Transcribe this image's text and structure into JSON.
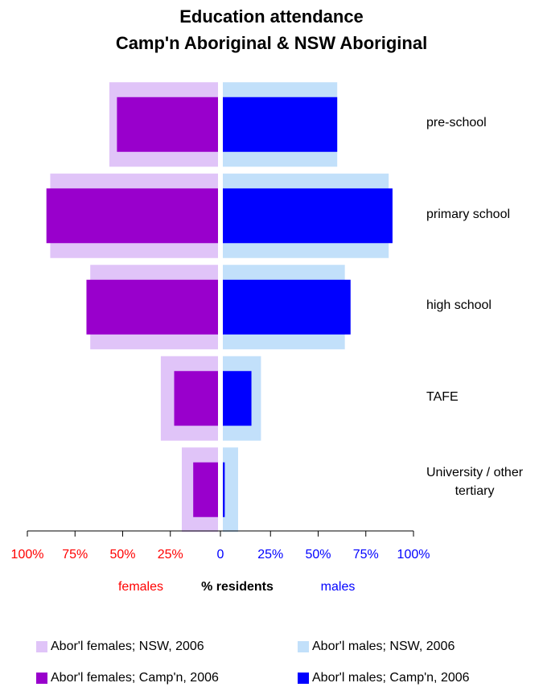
{
  "chart_data": {
    "type": "bar",
    "orientation": "horizontal-butterfly",
    "title_lines": [
      "Education attendance",
      "Camp'n Aboriginal & NSW Aboriginal"
    ],
    "categories": [
      "pre-school",
      "primary school",
      "high school",
      "TAFE",
      "University / other tertiary"
    ],
    "category_label_lines": [
      [
        "pre-school"
      ],
      [
        "primary school"
      ],
      [
        "high school"
      ],
      [
        "TAFE"
      ],
      [
        "University / other",
        "tertiary"
      ]
    ],
    "series": [
      {
        "name": "Abor'l females; NSW, 2006",
        "side": "left",
        "values": [
          57,
          88,
          67,
          30,
          19
        ]
      },
      {
        "name": "Abor'l males; NSW, 2006",
        "side": "right",
        "values": [
          60,
          87,
          64,
          20,
          8
        ]
      },
      {
        "name": "Abor'l females; Camp'n, 2006",
        "side": "left",
        "values": [
          53,
          90,
          69,
          23,
          13
        ]
      },
      {
        "name": "Abor'l males; Camp'n, 2006",
        "side": "right",
        "values": [
          60,
          89,
          67,
          15,
          1
        ]
      }
    ],
    "left_tick_labels": [
      "100%",
      "75%",
      "50%",
      "25%"
    ],
    "center_tick_label": "0",
    "right_tick_labels": [
      "25%",
      "50%",
      "75%",
      "100%"
    ],
    "left_axis_word": "females",
    "center_axis_word": "% residents",
    "right_axis_word": "males",
    "xlim": [
      -100,
      100
    ],
    "legend_position": "bottom",
    "colors": {
      "nsw_females": "#e0c4f8",
      "nsw_males": "#c2e0fa",
      "campn_females": "#9900cc",
      "campn_males": "#0000ff",
      "left_text": "#ff0000",
      "right_text": "#0000ff",
      "axis_line": "#000000"
    }
  }
}
